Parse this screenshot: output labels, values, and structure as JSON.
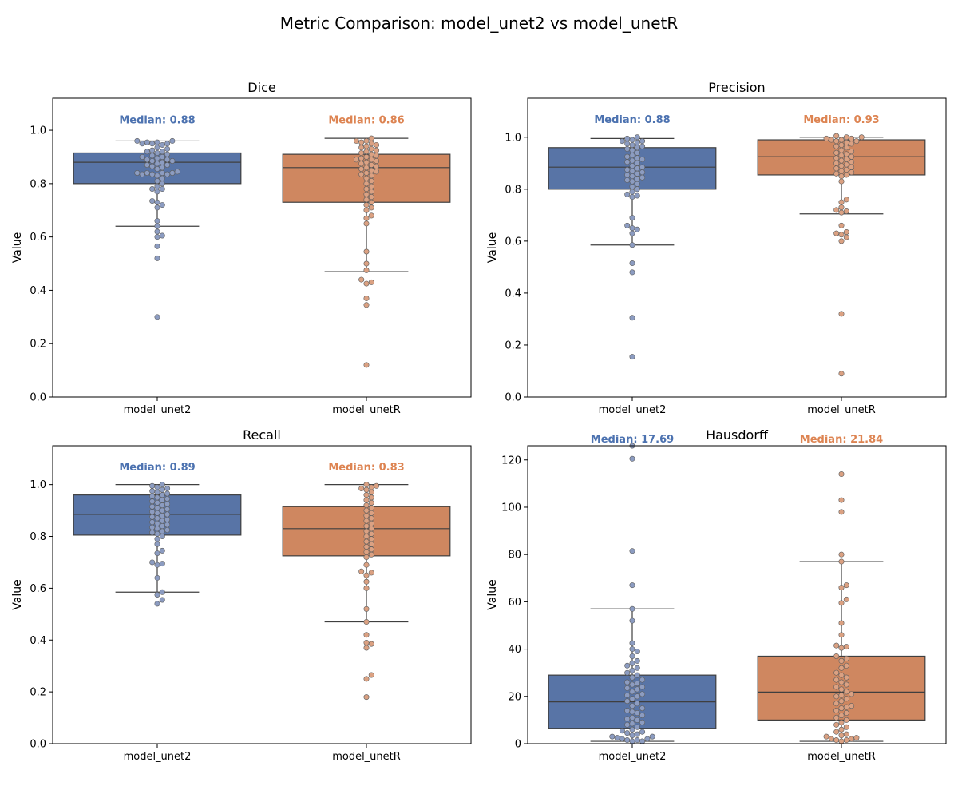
{
  "figure": {
    "title": "Metric Comparison: model_unet2 vs model_unetR"
  },
  "colors": {
    "model_unet2": "#5874a6",
    "model_unet2_text": "#4c72b0",
    "model_unet2_point": "#8c9cc1",
    "model_unetR": "#cf8760",
    "model_unetR_text": "#dd8452",
    "model_unetR_point": "#dba182",
    "box_line": "#3f3f3f"
  },
  "chart_data": [
    {
      "type": "box",
      "title": "Dice",
      "ylabel": "Value",
      "categories": [
        "model_unet2",
        "model_unetR"
      ],
      "ylim": [
        0,
        1.12
      ],
      "yticks": [
        0.0,
        0.2,
        0.4,
        0.6,
        0.8,
        1.0
      ],
      "tick_format": "0.0",
      "median_labels": [
        "Median: 0.88",
        "Median: 0.86"
      ],
      "median_label_y": 1.04,
      "boxes": [
        {
          "name": "model_unet2",
          "whisker_low": 0.64,
          "q1": 0.8,
          "median": 0.88,
          "q3": 0.915,
          "whisker_high": 0.96
        },
        {
          "name": "model_unetR",
          "whisker_low": 0.47,
          "q1": 0.73,
          "median": 0.86,
          "q3": 0.91,
          "whisker_high": 0.97
        }
      ],
      "points": [
        [
          0.96,
          0.95,
          0.955,
          0.95,
          0.945,
          0.95,
          0.955,
          0.96,
          0.93,
          0.925,
          0.92,
          0.935,
          0.92,
          0.915,
          0.91,
          0.9,
          0.905,
          0.9,
          0.895,
          0.89,
          0.885,
          0.89,
          0.885,
          0.88,
          0.875,
          0.87,
          0.87,
          0.865,
          0.86,
          0.855,
          0.845,
          0.84,
          0.84,
          0.835,
          0.835,
          0.835,
          0.84,
          0.84,
          0.83,
          0.82,
          0.81,
          0.8,
          0.79,
          0.78,
          0.78,
          0.77,
          0.735,
          0.73,
          0.72,
          0.71,
          0.66,
          0.64,
          0.62,
          0.605,
          0.6,
          0.565,
          0.52,
          0.3
        ],
        [
          0.97,
          0.96,
          0.96,
          0.955,
          0.95,
          0.945,
          0.94,
          0.935,
          0.93,
          0.925,
          0.92,
          0.915,
          0.91,
          0.905,
          0.9,
          0.895,
          0.89,
          0.89,
          0.885,
          0.88,
          0.875,
          0.87,
          0.865,
          0.86,
          0.855,
          0.85,
          0.845,
          0.84,
          0.835,
          0.83,
          0.82,
          0.81,
          0.8,
          0.79,
          0.78,
          0.77,
          0.76,
          0.75,
          0.74,
          0.73,
          0.72,
          0.71,
          0.7,
          0.68,
          0.67,
          0.65,
          0.545,
          0.5,
          0.475,
          0.44,
          0.43,
          0.425,
          0.37,
          0.345,
          0.12
        ]
      ]
    },
    {
      "type": "box",
      "title": "Precision",
      "ylabel": "Value",
      "categories": [
        "model_unet2",
        "model_unetR"
      ],
      "ylim": [
        0,
        1.15
      ],
      "yticks": [
        0.0,
        0.2,
        0.4,
        0.6,
        0.8,
        1.0
      ],
      "tick_format": "0.0",
      "median_labels": [
        "Median: 0.88",
        "Median: 0.93"
      ],
      "median_label_y": 1.07,
      "boxes": [
        {
          "name": "model_unet2",
          "whisker_low": 0.585,
          "q1": 0.8,
          "median": 0.885,
          "q3": 0.96,
          "whisker_high": 0.995
        },
        {
          "name": "model_unetR",
          "whisker_low": 0.705,
          "q1": 0.855,
          "median": 0.925,
          "q3": 0.99,
          "whisker_high": 1.0
        }
      ],
      "points": [
        [
          1.0,
          0.995,
          0.99,
          0.985,
          0.985,
          0.98,
          0.975,
          0.97,
          0.965,
          0.96,
          0.955,
          0.95,
          0.94,
          0.93,
          0.925,
          0.92,
          0.915,
          0.91,
          0.905,
          0.9,
          0.89,
          0.885,
          0.88,
          0.875,
          0.87,
          0.865,
          0.86,
          0.855,
          0.85,
          0.845,
          0.84,
          0.835,
          0.83,
          0.82,
          0.81,
          0.8,
          0.79,
          0.78,
          0.775,
          0.77,
          0.69,
          0.66,
          0.65,
          0.645,
          0.63,
          0.585,
          0.515,
          0.48,
          0.305,
          0.155
        ],
        [
          1.005,
          1.0,
          1.0,
          0.995,
          0.995,
          0.99,
          0.99,
          0.985,
          0.985,
          0.98,
          0.975,
          0.97,
          0.965,
          0.96,
          0.95,
          0.945,
          0.94,
          0.935,
          0.93,
          0.925,
          0.92,
          0.915,
          0.91,
          0.905,
          0.9,
          0.895,
          0.89,
          0.885,
          0.88,
          0.875,
          0.87,
          0.865,
          0.86,
          0.855,
          0.85,
          0.83,
          0.76,
          0.75,
          0.73,
          0.72,
          0.715,
          0.71,
          0.66,
          0.635,
          0.63,
          0.625,
          0.615,
          0.6,
          0.32,
          0.09
        ]
      ]
    },
    {
      "type": "box",
      "title": "Recall",
      "ylabel": "Value",
      "categories": [
        "model_unet2",
        "model_unetR"
      ],
      "ylim": [
        0,
        1.15
      ],
      "yticks": [
        0.0,
        0.2,
        0.4,
        0.6,
        0.8,
        1.0
      ],
      "tick_format": "0.0",
      "median_labels": [
        "Median: 0.89",
        "Median: 0.83"
      ],
      "median_label_y": 1.07,
      "boxes": [
        {
          "name": "model_unet2",
          "whisker_low": 0.585,
          "q1": 0.805,
          "median": 0.885,
          "q3": 0.96,
          "whisker_high": 1.0
        },
        {
          "name": "model_unetR",
          "whisker_low": 0.47,
          "q1": 0.725,
          "median": 0.83,
          "q3": 0.915,
          "whisker_high": 1.0
        }
      ],
      "points": [
        [
          1.0,
          0.995,
          0.99,
          0.985,
          0.98,
          0.975,
          0.97,
          0.965,
          0.96,
          0.955,
          0.95,
          0.945,
          0.94,
          0.935,
          0.93,
          0.925,
          0.92,
          0.915,
          0.91,
          0.905,
          0.9,
          0.895,
          0.89,
          0.885,
          0.88,
          0.875,
          0.87,
          0.865,
          0.86,
          0.855,
          0.85,
          0.845,
          0.84,
          0.835,
          0.83,
          0.825,
          0.82,
          0.815,
          0.81,
          0.8,
          0.79,
          0.77,
          0.745,
          0.735,
          0.7,
          0.695,
          0.69,
          0.64,
          0.585,
          0.575,
          0.555,
          0.54
        ],
        [
          1.0,
          0.995,
          0.99,
          0.985,
          0.98,
          0.97,
          0.96,
          0.95,
          0.94,
          0.93,
          0.92,
          0.91,
          0.9,
          0.89,
          0.88,
          0.87,
          0.86,
          0.85,
          0.84,
          0.83,
          0.82,
          0.81,
          0.8,
          0.79,
          0.78,
          0.77,
          0.76,
          0.75,
          0.74,
          0.73,
          0.72,
          0.69,
          0.665,
          0.66,
          0.65,
          0.625,
          0.6,
          0.52,
          0.47,
          0.42,
          0.39,
          0.385,
          0.37,
          0.265,
          0.25,
          0.18
        ]
      ]
    },
    {
      "type": "box",
      "title": "Hausdorff",
      "ylabel": "Value",
      "categories": [
        "model_unet2",
        "model_unetR"
      ],
      "ylim": [
        0,
        126
      ],
      "yticks": [
        0,
        20,
        40,
        60,
        80,
        100,
        120
      ],
      "tick_format": "0",
      "median_labels": [
        "Median: 17.69",
        "Median: 21.84"
      ],
      "median_label_y": 129,
      "boxes": [
        {
          "name": "model_unet2",
          "whisker_low": 1,
          "q1": 6.5,
          "median": 17.69,
          "q3": 29,
          "whisker_high": 57
        },
        {
          "name": "model_unetR",
          "whisker_low": 1,
          "q1": 10,
          "median": 21.84,
          "q3": 37,
          "whisker_high": 77
        }
      ],
      "points": [
        [
          126,
          120.5,
          81.5,
          67,
          57,
          52,
          42.5,
          40,
          39,
          37,
          35,
          34,
          33,
          32,
          31,
          30,
          29,
          28,
          27,
          26,
          25.5,
          25,
          24,
          23.5,
          23,
          22,
          21,
          20.5,
          20,
          19,
          18,
          17,
          16,
          15,
          14,
          13.5,
          13,
          12,
          11,
          10.5,
          10,
          9,
          8.5,
          8,
          7,
          6,
          5.5,
          5,
          4.5,
          4,
          3.5,
          3,
          3,
          2.5,
          2,
          2,
          1.5,
          1.5,
          1,
          1
        ],
        [
          114,
          103,
          98,
          80,
          77,
          67,
          66,
          61,
          59.5,
          51,
          46,
          41.5,
          41,
          40.5,
          37,
          36,
          35,
          33,
          32,
          30,
          29,
          28,
          27,
          26,
          25,
          24,
          23,
          22,
          21,
          20.5,
          20,
          19,
          18,
          17,
          16,
          15.5,
          15,
          14,
          13,
          12,
          11,
          10,
          9,
          8,
          7,
          6,
          5,
          4,
          3.5,
          3,
          2.5,
          2,
          2,
          1.5,
          1.5,
          1
        ]
      ]
    }
  ]
}
